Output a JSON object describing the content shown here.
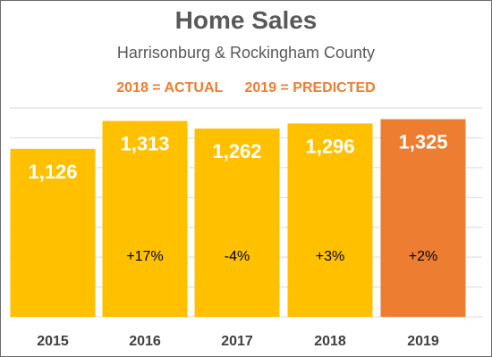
{
  "chart_data": {
    "type": "bar",
    "title": "Home Sales",
    "subtitle": "Harrisonburg & Rockingham County",
    "legend_text": [
      "2018 = ACTUAL",
      "2019 = PREDICTED"
    ],
    "categories": [
      "2015",
      "2016",
      "2017",
      "2018",
      "2019"
    ],
    "values": [
      1126,
      1313,
      1262,
      1296,
      1325
    ],
    "value_labels": [
      "1,126",
      "1,313",
      "1,262",
      "1,296",
      "1,325"
    ],
    "change_labels": [
      "",
      "+17%",
      "-4%",
      "+3%",
      "+2%"
    ],
    "bar_colors": [
      "#ffc000",
      "#ffc000",
      "#ffc000",
      "#ffc000",
      "#ed7d31"
    ],
    "ylim": [
      0,
      1400
    ],
    "grid": true,
    "xlabel": "",
    "ylabel": ""
  }
}
